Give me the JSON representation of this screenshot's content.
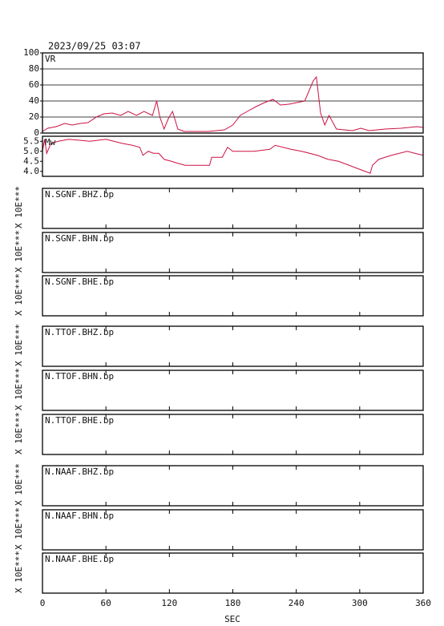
{
  "x_axis": {
    "label": "SEC",
    "xlim": [
      0,
      360
    ],
    "xticks": [
      0,
      60,
      120,
      180,
      240,
      300,
      360
    ]
  },
  "chart_data": [
    {
      "type": "line",
      "title": "2023/09/25 03:07",
      "label": "VR",
      "color": "#cc1144",
      "grid": true,
      "ylim": [
        0,
        100
      ],
      "yticks": [
        0,
        20,
        40,
        60,
        80,
        100
      ],
      "x": [
        0,
        5,
        13,
        21,
        28,
        36,
        43,
        51,
        58,
        66,
        74,
        81,
        89,
        96,
        104,
        108,
        111,
        115,
        119,
        123,
        128,
        134,
        157,
        172,
        180,
        187,
        195,
        202,
        210,
        218,
        225,
        233,
        248,
        256,
        259,
        263,
        267,
        271,
        278,
        293,
        301,
        309,
        324,
        339,
        354,
        360
      ],
      "values": [
        2,
        6,
        8,
        12,
        10,
        12,
        13,
        20,
        24,
        25,
        22,
        27,
        22,
        27,
        22,
        40,
        20,
        5,
        18,
        27,
        5,
        2,
        2,
        4,
        10,
        22,
        28,
        33,
        38,
        42,
        35,
        36,
        40,
        65,
        70,
        25,
        10,
        22,
        5,
        3,
        6,
        3,
        5,
        6,
        8,
        7
      ]
    },
    {
      "type": "line",
      "label": "Mw",
      "color": "#cc1144",
      "grid": false,
      "ylim": [
        3.75,
        5.75
      ],
      "yticks": [
        {
          "value": 4,
          "label": "4.0"
        },
        4.5,
        {
          "value": 5,
          "label": "5.0"
        },
        5.5
      ],
      "x": [
        0,
        2,
        4,
        8,
        15,
        25,
        45,
        60,
        75,
        85,
        92,
        95,
        100,
        105,
        110,
        115,
        122,
        128,
        135,
        158,
        160,
        170,
        175,
        180,
        200,
        215,
        220,
        235,
        245,
        260,
        270,
        280,
        290,
        300,
        305,
        310,
        312,
        318,
        330,
        345,
        352,
        360
      ],
      "values": [
        5.0,
        5.6,
        4.9,
        5.4,
        5.5,
        5.6,
        5.5,
        5.6,
        5.4,
        5.3,
        5.2,
        4.8,
        5.0,
        4.9,
        4.9,
        4.6,
        4.5,
        4.4,
        4.3,
        4.3,
        4.7,
        4.7,
        5.2,
        5.0,
        5.0,
        5.1,
        5.3,
        5.1,
        5.0,
        4.8,
        4.6,
        4.5,
        4.3,
        4.1,
        4.0,
        3.9,
        4.3,
        4.6,
        4.8,
        5.0,
        4.9,
        4.8
      ]
    }
  ],
  "traces": [
    {
      "label": "N.SGNF.BHZ.bp",
      "side": "X 10E***"
    },
    {
      "label": "N.SGNF.BHN.bp",
      "side": "X 10E***"
    },
    {
      "label": "N.SGNF.BHE.bp",
      "side": "X 10E***"
    },
    {
      "label": "N.TTOF.BHZ.bp",
      "side": "X 10E***"
    },
    {
      "label": "N.TTOF.BHN.bp",
      "side": "X 10E***"
    },
    {
      "label": "N.TTOF.BHE.bp",
      "side": "X 10E***"
    },
    {
      "label": "N.NAAF.BHZ.bp",
      "side": "X 10E***"
    },
    {
      "label": "N.NAAF.BHN.bp",
      "side": "X 10E***"
    },
    {
      "label": "N.NAAF.BHE.bp",
      "side": "X 10E***"
    }
  ]
}
